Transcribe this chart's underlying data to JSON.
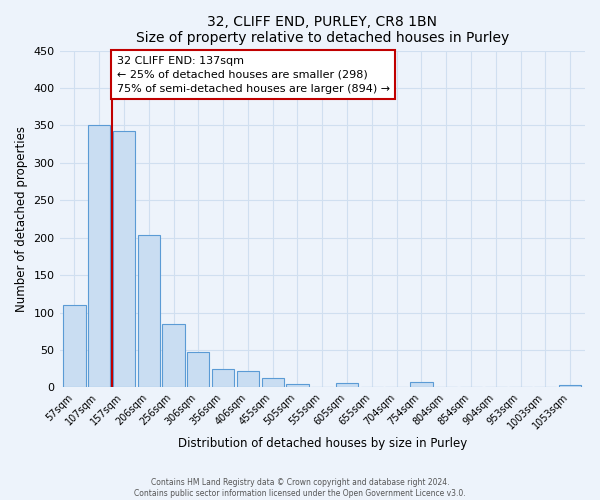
{
  "title": "32, CLIFF END, PURLEY, CR8 1BN",
  "subtitle": "Size of property relative to detached houses in Purley",
  "xlabel": "Distribution of detached houses by size in Purley",
  "ylabel": "Number of detached properties",
  "bar_labels": [
    "57sqm",
    "107sqm",
    "157sqm",
    "206sqm",
    "256sqm",
    "306sqm",
    "356sqm",
    "406sqm",
    "455sqm",
    "505sqm",
    "555sqm",
    "605sqm",
    "655sqm",
    "704sqm",
    "754sqm",
    "804sqm",
    "854sqm",
    "904sqm",
    "953sqm",
    "1003sqm",
    "1053sqm"
  ],
  "bar_values": [
    110,
    350,
    343,
    203,
    85,
    47,
    25,
    22,
    12,
    4,
    0,
    6,
    0,
    0,
    7,
    0,
    0,
    0,
    0,
    0,
    3
  ],
  "bar_color": "#c9ddf2",
  "bar_edge_color": "#5b9bd5",
  "vline_color": "#c00000",
  "annotation_box_text": "32 CLIFF END: 137sqm\n← 25% of detached houses are smaller (298)\n75% of semi-detached houses are larger (894) →",
  "annotation_box_facecolor": "white",
  "annotation_box_edgecolor": "#c00000",
  "ylim": [
    0,
    450
  ],
  "yticks": [
    0,
    50,
    100,
    150,
    200,
    250,
    300,
    350,
    400,
    450
  ],
  "footer_line1": "Contains HM Land Registry data © Crown copyright and database right 2024.",
  "footer_line2": "Contains public sector information licensed under the Open Government Licence v3.0.",
  "bg_color": "#edf3fb",
  "grid_color": "#d0dff0"
}
